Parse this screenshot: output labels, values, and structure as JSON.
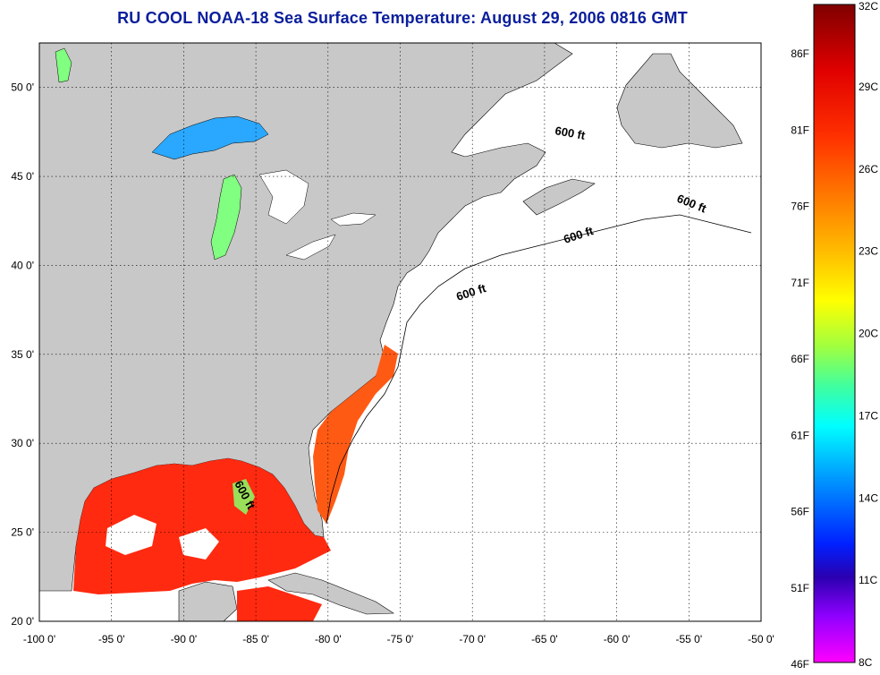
{
  "title": "RU COOL  NOAA-18  Sea Surface Temperature:  August 29, 2006 0816 GMT",
  "map": {
    "lon_range": [
      -100,
      -50
    ],
    "lat_range": [
      20,
      52.5
    ],
    "lon_ticks": [
      {
        "value": -100,
        "label": "-100 0'"
      },
      {
        "value": -95,
        "label": "-95 0'"
      },
      {
        "value": -90,
        "label": "-90 0'"
      },
      {
        "value": -85,
        "label": "-85 0'"
      },
      {
        "value": -80,
        "label": "-80 0'"
      },
      {
        "value": -75,
        "label": "-75 0'"
      },
      {
        "value": -70,
        "label": "-70 0'"
      },
      {
        "value": -65,
        "label": "-65 0'"
      },
      {
        "value": -60,
        "label": "-60 0'"
      },
      {
        "value": -55,
        "label": "-55 0'"
      },
      {
        "value": -50,
        "label": "-50 0'"
      }
    ],
    "lat_ticks": [
      {
        "value": 20,
        "label": "20 0'"
      },
      {
        "value": 25,
        "label": "25 0'"
      },
      {
        "value": 30,
        "label": "30 0'"
      },
      {
        "value": 35,
        "label": "35 0'"
      },
      {
        "value": 40,
        "label": "40 0'"
      },
      {
        "value": 45,
        "label": "45 0'"
      },
      {
        "value": 50,
        "label": "50 0'"
      }
    ],
    "contour_label": "600 ft",
    "colors": {
      "land": "#c8c8c8",
      "ocean_nodata": "#ffffff",
      "warm_sst": "#ff2a10",
      "gulf_stream": "#ff5a14",
      "lake_cool": "#2aa8ff",
      "lake_mid": "#80ff80",
      "title": "#0a1e9c",
      "grid": "#000000"
    }
  },
  "colorbar": {
    "left_labels": [
      "86F",
      "81F",
      "76F",
      "71F",
      "66F",
      "61F",
      "56F",
      "51F",
      "46F"
    ],
    "right_labels": [
      "32C",
      "29C",
      "26C",
      "23C",
      "20C",
      "17C",
      "14C",
      "11C",
      "8C"
    ],
    "colors_top_to_bottom": [
      "#7f0000",
      "#e60000",
      "#ff3c00",
      "#ff8000",
      "#ffbf00",
      "#ffff00",
      "#a0ff40",
      "#40ff9f",
      "#00ffff",
      "#0099ff",
      "#0033ff",
      "#1a00cc",
      "#8000ff",
      "#ff00ff"
    ]
  }
}
